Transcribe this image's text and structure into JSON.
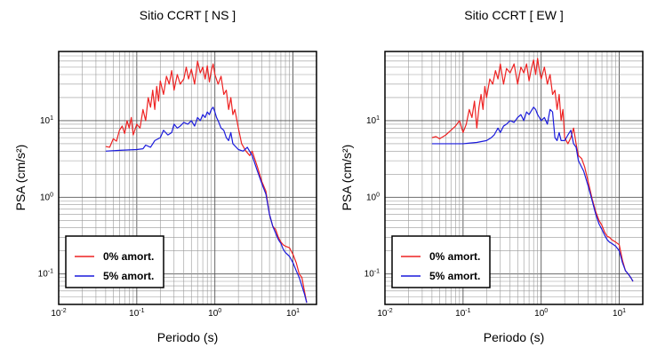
{
  "chart_data": [
    {
      "type": "line",
      "title": "Sitio CCRT [ NS ]",
      "xlabel": "Periodo (s)",
      "ylabel": "PSA (cm/s²)",
      "xscale": "log",
      "yscale": "log",
      "xlim": [
        0.01,
        20
      ],
      "ylim": [
        0.04,
        80
      ],
      "grid": true,
      "legend_position": "bottom-left",
      "x_ticks": [
        {
          "base": "10",
          "exp": "-2",
          "value": 0.01
        },
        {
          "base": "10",
          "exp": "-1",
          "value": 0.1
        },
        {
          "base": "10",
          "exp": "0",
          "value": 1
        },
        {
          "base": "10",
          "exp": "1",
          "value": 10
        }
      ],
      "y_ticks": [
        {
          "base": "10",
          "exp": "-1",
          "value": 0.1
        },
        {
          "base": "10",
          "exp": "0",
          "value": 1
        },
        {
          "base": "10",
          "exp": "1",
          "value": 10
        }
      ],
      "series": [
        {
          "name": "0% amort.",
          "color": "#ee2222",
          "points": [
            [
              0.04,
              4.6
            ],
            [
              0.045,
              4.5
            ],
            [
              0.05,
              5.8
            ],
            [
              0.055,
              5.4
            ],
            [
              0.06,
              7.5
            ],
            [
              0.065,
              8.5
            ],
            [
              0.07,
              6.8
            ],
            [
              0.075,
              10
            ],
            [
              0.08,
              8
            ],
            [
              0.085,
              11
            ],
            [
              0.09,
              6.5
            ],
            [
              0.1,
              9
            ],
            [
              0.11,
              8
            ],
            [
              0.12,
              14
            ],
            [
              0.13,
              10
            ],
            [
              0.14,
              20
            ],
            [
              0.15,
              15
            ],
            [
              0.16,
              25
            ],
            [
              0.17,
              14
            ],
            [
              0.18,
              28
            ],
            [
              0.19,
              18
            ],
            [
              0.2,
              33
            ],
            [
              0.22,
              22
            ],
            [
              0.24,
              38
            ],
            [
              0.26,
              30
            ],
            [
              0.28,
              45
            ],
            [
              0.3,
              25
            ],
            [
              0.33,
              40
            ],
            [
              0.36,
              30
            ],
            [
              0.4,
              35
            ],
            [
              0.43,
              50
            ],
            [
              0.46,
              35
            ],
            [
              0.5,
              47
            ],
            [
              0.55,
              30
            ],
            [
              0.6,
              60
            ],
            [
              0.65,
              42
            ],
            [
              0.7,
              50
            ],
            [
              0.75,
              35
            ],
            [
              0.8,
              52
            ],
            [
              0.85,
              32
            ],
            [
              0.9,
              45
            ],
            [
              0.95,
              55
            ],
            [
              1.0,
              40
            ],
            [
              1.1,
              30
            ],
            [
              1.2,
              38
            ],
            [
              1.3,
              22
            ],
            [
              1.4,
              25
            ],
            [
              1.5,
              14
            ],
            [
              1.6,
              20
            ],
            [
              1.7,
              12
            ],
            [
              1.8,
              14
            ],
            [
              2.0,
              8
            ],
            [
              2.2,
              5
            ],
            [
              2.5,
              4
            ],
            [
              2.8,
              3.5
            ],
            [
              3.0,
              4
            ],
            [
              3.5,
              2.5
            ],
            [
              4.0,
              1.6
            ],
            [
              4.5,
              1.2
            ],
            [
              5.0,
              0.6
            ],
            [
              5.5,
              0.42
            ],
            [
              6.0,
              0.38
            ],
            [
              6.5,
              0.3
            ],
            [
              7.0,
              0.26
            ],
            [
              7.5,
              0.24
            ],
            [
              8.0,
              0.23
            ],
            [
              9.0,
              0.22
            ],
            [
              10,
              0.18
            ],
            [
              11,
              0.14
            ],
            [
              12,
              0.1
            ],
            [
              13,
              0.09
            ],
            [
              14,
              0.06
            ],
            [
              15,
              0.042
            ]
          ]
        },
        {
          "name": "5% amort.",
          "color": "#1a1adc",
          "points": [
            [
              0.04,
              4
            ],
            [
              0.06,
              4.1
            ],
            [
              0.1,
              4.2
            ],
            [
              0.12,
              4.3
            ],
            [
              0.13,
              4.8
            ],
            [
              0.15,
              4.5
            ],
            [
              0.17,
              5.5
            ],
            [
              0.2,
              6
            ],
            [
              0.22,
              7.5
            ],
            [
              0.25,
              6.5
            ],
            [
              0.28,
              7
            ],
            [
              0.3,
              9
            ],
            [
              0.33,
              8
            ],
            [
              0.36,
              8.5
            ],
            [
              0.4,
              9.5
            ],
            [
              0.45,
              9
            ],
            [
              0.5,
              10
            ],
            [
              0.55,
              8.5
            ],
            [
              0.6,
              11
            ],
            [
              0.65,
              10
            ],
            [
              0.7,
              12
            ],
            [
              0.75,
              11
            ],
            [
              0.8,
              13
            ],
            [
              0.85,
              12
            ],
            [
              0.9,
              14
            ],
            [
              0.95,
              15
            ],
            [
              1.0,
              13
            ],
            [
              1.05,
              11
            ],
            [
              1.1,
              10
            ],
            [
              1.2,
              8
            ],
            [
              1.3,
              7.5
            ],
            [
              1.4,
              6
            ],
            [
              1.5,
              5.5
            ],
            [
              1.6,
              7
            ],
            [
              1.7,
              5
            ],
            [
              2.0,
              4.2
            ],
            [
              2.3,
              4
            ],
            [
              2.6,
              4.5
            ],
            [
              3.0,
              3.5
            ],
            [
              3.5,
              2.2
            ],
            [
              4.0,
              1.5
            ],
            [
              4.5,
              1.1
            ],
            [
              5.0,
              0.6
            ],
            [
              5.5,
              0.42
            ],
            [
              6.0,
              0.34
            ],
            [
              6.5,
              0.28
            ],
            [
              7.0,
              0.25
            ],
            [
              7.5,
              0.21
            ],
            [
              8.0,
              0.19
            ],
            [
              9.0,
              0.17
            ],
            [
              10,
              0.14
            ],
            [
              11,
              0.11
            ],
            [
              12,
              0.09
            ],
            [
              13,
              0.07
            ],
            [
              14,
              0.055
            ],
            [
              15,
              0.042
            ]
          ]
        }
      ]
    },
    {
      "type": "line",
      "title": "Sitio CCRT [ EW ]",
      "xlabel": "Periodo (s)",
      "ylabel": "PSA (cm/s²)",
      "xscale": "log",
      "yscale": "log",
      "xlim": [
        0.01,
        20
      ],
      "ylim": [
        0.04,
        80
      ],
      "grid": true,
      "legend_position": "bottom-left",
      "x_ticks": [
        {
          "base": "10",
          "exp": "-2",
          "value": 0.01
        },
        {
          "base": "10",
          "exp": "-1",
          "value": 0.1
        },
        {
          "base": "10",
          "exp": "0",
          "value": 1
        },
        {
          "base": "10",
          "exp": "1",
          "value": 10
        }
      ],
      "y_ticks": [
        {
          "base": "10",
          "exp": "-1",
          "value": 0.1
        },
        {
          "base": "10",
          "exp": "0",
          "value": 1
        },
        {
          "base": "10",
          "exp": "1",
          "value": 10
        }
      ],
      "series": [
        {
          "name": "0% amort.",
          "color": "#ee2222",
          "points": [
            [
              0.04,
              6
            ],
            [
              0.045,
              6.2
            ],
            [
              0.05,
              5.8
            ],
            [
              0.06,
              6.5
            ],
            [
              0.07,
              7.5
            ],
            [
              0.08,
              8.5
            ],
            [
              0.09,
              10
            ],
            [
              0.1,
              7
            ],
            [
              0.11,
              9
            ],
            [
              0.12,
              14
            ],
            [
              0.13,
              11
            ],
            [
              0.14,
              18
            ],
            [
              0.15,
              8
            ],
            [
              0.16,
              15
            ],
            [
              0.17,
              22
            ],
            [
              0.18,
              14
            ],
            [
              0.19,
              28
            ],
            [
              0.2,
              20
            ],
            [
              0.22,
              35
            ],
            [
              0.24,
              30
            ],
            [
              0.26,
              45
            ],
            [
              0.28,
              35
            ],
            [
              0.3,
              55
            ],
            [
              0.33,
              30
            ],
            [
              0.36,
              48
            ],
            [
              0.4,
              42
            ],
            [
              0.45,
              55
            ],
            [
              0.5,
              30
            ],
            [
              0.55,
              50
            ],
            [
              0.6,
              42
            ],
            [
              0.65,
              55
            ],
            [
              0.7,
              33
            ],
            [
              0.75,
              48
            ],
            [
              0.8,
              62
            ],
            [
              0.85,
              40
            ],
            [
              0.9,
              65
            ],
            [
              0.95,
              45
            ],
            [
              1.0,
              35
            ],
            [
              1.1,
              50
            ],
            [
              1.2,
              30
            ],
            [
              1.3,
              40
            ],
            [
              1.4,
              22
            ],
            [
              1.5,
              25
            ],
            [
              1.6,
              14
            ],
            [
              1.7,
              22
            ],
            [
              1.8,
              10
            ],
            [
              1.9,
              14
            ],
            [
              2.0,
              6
            ],
            [
              2.2,
              5
            ],
            [
              2.4,
              6
            ],
            [
              2.6,
              8
            ],
            [
              2.8,
              5
            ],
            [
              3.0,
              3.5
            ],
            [
              3.3,
              3.2
            ],
            [
              3.6,
              2.5
            ],
            [
              4.0,
              1.6
            ],
            [
              4.5,
              0.95
            ],
            [
              5.0,
              0.65
            ],
            [
              5.5,
              0.5
            ],
            [
              6.0,
              0.43
            ],
            [
              6.5,
              0.35
            ],
            [
              7.0,
              0.31
            ],
            [
              7.5,
              0.3
            ],
            [
              8.0,
              0.28
            ],
            [
              9.0,
              0.26
            ],
            [
              10,
              0.24
            ],
            [
              11,
              0.15
            ],
            [
              12,
              0.11
            ],
            [
              13,
              0.1
            ],
            [
              14,
              0.09
            ],
            [
              15,
              0.08
            ]
          ]
        },
        {
          "name": "5% amort.",
          "color": "#1a1adc",
          "points": [
            [
              0.04,
              5
            ],
            [
              0.06,
              5
            ],
            [
              0.1,
              5
            ],
            [
              0.12,
              5.1
            ],
            [
              0.15,
              5.2
            ],
            [
              0.2,
              5.5
            ],
            [
              0.23,
              6
            ],
            [
              0.25,
              6.5
            ],
            [
              0.28,
              8
            ],
            [
              0.3,
              7
            ],
            [
              0.33,
              8.5
            ],
            [
              0.36,
              9
            ],
            [
              0.4,
              10
            ],
            [
              0.45,
              9.5
            ],
            [
              0.5,
              11
            ],
            [
              0.55,
              12
            ],
            [
              0.6,
              10
            ],
            [
              0.65,
              13
            ],
            [
              0.7,
              12
            ],
            [
              0.75,
              13.5
            ],
            [
              0.8,
              15
            ],
            [
              0.85,
              14
            ],
            [
              0.9,
              12
            ],
            [
              0.95,
              11
            ],
            [
              1.0,
              10
            ],
            [
              1.1,
              11
            ],
            [
              1.2,
              9
            ],
            [
              1.3,
              14
            ],
            [
              1.4,
              13
            ],
            [
              1.5,
              6
            ],
            [
              1.6,
              5.5
            ],
            [
              1.7,
              7
            ],
            [
              1.8,
              5.5
            ],
            [
              2.0,
              5.5
            ],
            [
              2.2,
              6.5
            ],
            [
              2.4,
              7.5
            ],
            [
              2.6,
              5
            ],
            [
              2.8,
              4.5
            ],
            [
              3.0,
              3
            ],
            [
              3.5,
              2.2
            ],
            [
              4.0,
              1.4
            ],
            [
              4.5,
              0.9
            ],
            [
              5.0,
              0.6
            ],
            [
              5.5,
              0.45
            ],
            [
              6.0,
              0.38
            ],
            [
              6.5,
              0.32
            ],
            [
              7.0,
              0.28
            ],
            [
              7.5,
              0.26
            ],
            [
              8.0,
              0.25
            ],
            [
              9.0,
              0.23
            ],
            [
              10,
              0.2
            ],
            [
              11,
              0.14
            ],
            [
              12,
              0.11
            ],
            [
              13,
              0.1
            ],
            [
              14,
              0.09
            ],
            [
              15,
              0.08
            ]
          ]
        }
      ]
    }
  ]
}
